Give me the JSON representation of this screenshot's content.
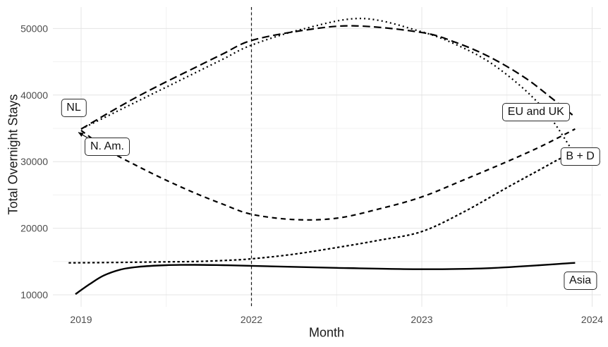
{
  "chart_data": {
    "type": "line",
    "title": "",
    "xlabel": "Month",
    "ylabel": "Total Overnight Stays",
    "x_ticks": [
      2019,
      2022,
      2023,
      2024
    ],
    "x_tick_labels": [
      "2019",
      "2022",
      "2023",
      "2024"
    ],
    "y_ticks": [
      10000,
      20000,
      30000,
      40000,
      50000
    ],
    "y_tick_labels": [
      "10000",
      "20000",
      "30000",
      "40000",
      "50000"
    ],
    "y_minor_ticks": [
      15000,
      25000,
      35000,
      45000
    ],
    "ylim": [
      8200,
      53300
    ],
    "grid": true,
    "legend_position": "none",
    "reference_line": {
      "x": 2022,
      "style": "dashed"
    },
    "series": [
      {
        "name": "NL",
        "linetype": "dotted",
        "points": [
          [
            2019,
            34900
          ],
          [
            2019.5,
            37000
          ],
          [
            2020,
            39100
          ],
          [
            2020.5,
            41200
          ],
          [
            2021,
            43300
          ],
          [
            2021.5,
            45400
          ],
          [
            2022,
            47500
          ],
          [
            2022.3,
            49900
          ],
          [
            2022.65,
            51500
          ],
          [
            2023,
            49500
          ],
          [
            2023.2,
            47600
          ],
          [
            2023.4,
            44900
          ],
          [
            2023.6,
            40900
          ],
          [
            2023.75,
            36800
          ],
          [
            2023.9,
            31000
          ]
        ]
      },
      {
        "name": "EU and UK",
        "linetype": "longdash",
        "points": [
          [
            2019,
            34900
          ],
          [
            2019.5,
            37400
          ],
          [
            2020,
            39800
          ],
          [
            2020.5,
            42000
          ],
          [
            2021,
            44100
          ],
          [
            2021.5,
            46200
          ],
          [
            2022,
            48200
          ],
          [
            2022.3,
            49700
          ],
          [
            2022.6,
            50400
          ],
          [
            2023,
            49400
          ],
          [
            2023.2,
            47900
          ],
          [
            2023.4,
            45700
          ],
          [
            2023.6,
            42700
          ],
          [
            2023.75,
            39800
          ],
          [
            2023.9,
            36700
          ]
        ]
      },
      {
        "name": "N. Am.",
        "linetype": "dashed",
        "points": [
          [
            2019,
            34700
          ],
          [
            2019.5,
            31600
          ],
          [
            2020,
            29300
          ],
          [
            2020.5,
            27200
          ],
          [
            2021,
            25300
          ],
          [
            2021.5,
            23600
          ],
          [
            2022,
            22100
          ],
          [
            2022.25,
            21300
          ],
          [
            2022.5,
            21500
          ],
          [
            2022.75,
            22900
          ],
          [
            2023,
            24700
          ],
          [
            2023.25,
            27300
          ],
          [
            2023.5,
            30000
          ],
          [
            2023.7,
            32300
          ],
          [
            2023.9,
            34900
          ]
        ]
      },
      {
        "name": "B + D",
        "linetype": "shortdash",
        "points": [
          [
            2018.78,
            14800
          ],
          [
            2019.5,
            14850
          ],
          [
            2020,
            14900
          ],
          [
            2020.5,
            14950
          ],
          [
            2021,
            15000
          ],
          [
            2021.5,
            15150
          ],
          [
            2022,
            15400
          ],
          [
            2022.25,
            16100
          ],
          [
            2022.5,
            17100
          ],
          [
            2022.75,
            18200
          ],
          [
            2023,
            19500
          ],
          [
            2023.25,
            22500
          ],
          [
            2023.5,
            26100
          ],
          [
            2023.7,
            28900
          ],
          [
            2023.8,
            30300
          ],
          [
            2023.9,
            31500
          ]
        ]
      },
      {
        "name": "Asia",
        "linetype": "solid",
        "points": [
          [
            2018.9,
            10100
          ],
          [
            2019.15,
            11600
          ],
          [
            2019.4,
            12900
          ],
          [
            2019.7,
            13800
          ],
          [
            2020,
            14200
          ],
          [
            2020.5,
            14450
          ],
          [
            2021,
            14500
          ],
          [
            2021.5,
            14450
          ],
          [
            2022,
            14350
          ],
          [
            2022.5,
            14050
          ],
          [
            2023,
            13850
          ],
          [
            2023.4,
            14000
          ],
          [
            2023.9,
            14800
          ]
        ]
      }
    ],
    "labels": [
      {
        "text": "NL",
        "x": 2018.87,
        "y": 38100
      },
      {
        "text": "N. Am.",
        "x": 2019.46,
        "y": 32300
      },
      {
        "text": "EU and UK",
        "x": 2023.67,
        "y": 37400
      },
      {
        "text": "B + D",
        "x": 2023.93,
        "y": 30800
      },
      {
        "text": "Asia",
        "x": 2023.93,
        "y": 12100
      }
    ],
    "annotations": [
      {
        "kind": "arrow",
        "from": [
          2019.19,
          33200
        ],
        "to": [
          2018.95,
          34400
        ]
      }
    ],
    "colors": {
      "line": "#000000",
      "grid_major": "#e4e4e4",
      "grid_minor": "#f1f1f1",
      "tick_text": "#4d4d4d",
      "axis_title": "#1a1a1a",
      "background": "#ffffff",
      "reference_line": "#1a1a1a"
    }
  }
}
